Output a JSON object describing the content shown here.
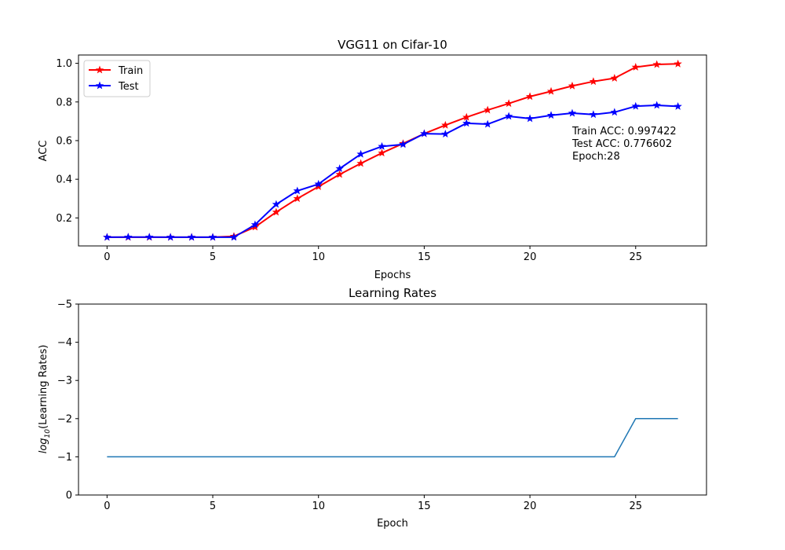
{
  "chart_data": [
    {
      "type": "line",
      "title": "VGG11 on Cifar-10",
      "xlabel": "Epochs",
      "ylabel": "ACC",
      "xlim": [
        -1.35,
        28.35
      ],
      "ylim": [
        0.055,
        1.043
      ],
      "xticks": [
        0,
        5,
        10,
        15,
        20,
        25
      ],
      "yticks": [
        0.2,
        0.4,
        0.6,
        0.8,
        1.0
      ],
      "xtick_labels": [
        "0",
        "5",
        "10",
        "15",
        "20",
        "25"
      ],
      "ytick_labels": [
        "0.2",
        "0.4",
        "0.6",
        "0.8",
        "1.0"
      ],
      "grid": false,
      "legend_position": "upper-left",
      "x": [
        0,
        1,
        2,
        3,
        4,
        5,
        6,
        7,
        8,
        9,
        10,
        11,
        12,
        13,
        14,
        15,
        16,
        17,
        18,
        19,
        20,
        21,
        22,
        23,
        24,
        25,
        26,
        27
      ],
      "series": [
        {
          "name": "Train",
          "color": "#ff0000",
          "marker": "star",
          "values": [
            0.1,
            0.1,
            0.1,
            0.1,
            0.1,
            0.1,
            0.105,
            0.153,
            0.23,
            0.3,
            0.362,
            0.425,
            0.482,
            0.536,
            0.585,
            0.636,
            0.68,
            0.721,
            0.758,
            0.792,
            0.828,
            0.855,
            0.883,
            0.906,
            0.923,
            0.98,
            0.994,
            0.997
          ]
        },
        {
          "name": "Test",
          "color": "#0000ff",
          "marker": "star",
          "values": [
            0.1,
            0.101,
            0.101,
            0.1,
            0.1,
            0.1,
            0.1,
            0.165,
            0.27,
            0.34,
            0.375,
            0.455,
            0.53,
            0.57,
            0.58,
            0.636,
            0.634,
            0.69,
            0.685,
            0.726,
            0.714,
            0.731,
            0.742,
            0.735,
            0.747,
            0.778,
            0.783,
            0.777
          ]
        }
      ],
      "annotation_lines": [
        "Train ACC: 0.997422",
        "Test ACC: 0.776602",
        "Epoch:28"
      ]
    },
    {
      "type": "line",
      "title": "Learning Rates",
      "xlabel": "Epoch",
      "ylabel_prefix": "log",
      "ylabel_subscript": "10",
      "ylabel_suffix": "(Learning Rates)",
      "xlim": [
        -1.35,
        28.35
      ],
      "ylim": [
        0,
        -5
      ],
      "y_inverted": true,
      "xticks": [
        0,
        5,
        10,
        15,
        20,
        25
      ],
      "yticks": [
        0,
        -1,
        -2,
        -3,
        -4,
        -5
      ],
      "xtick_labels": [
        "0",
        "5",
        "10",
        "15",
        "20",
        "25"
      ],
      "ytick_labels": [
        "0",
        "−1",
        "−2",
        "−3",
        "−4",
        "−5"
      ],
      "grid": false,
      "x": [
        0,
        1,
        2,
        3,
        4,
        5,
        6,
        7,
        8,
        9,
        10,
        11,
        12,
        13,
        14,
        15,
        16,
        17,
        18,
        19,
        20,
        21,
        22,
        23,
        24,
        25,
        26,
        27
      ],
      "series": [
        {
          "color": "#1f77b4",
          "values": [
            -1,
            -1,
            -1,
            -1,
            -1,
            -1,
            -1,
            -1,
            -1,
            -1,
            -1,
            -1,
            -1,
            -1,
            -1,
            -1,
            -1,
            -1,
            -1,
            -1,
            -1,
            -1,
            -1,
            -1,
            -1,
            -2,
            -2,
            -2
          ]
        }
      ]
    }
  ]
}
